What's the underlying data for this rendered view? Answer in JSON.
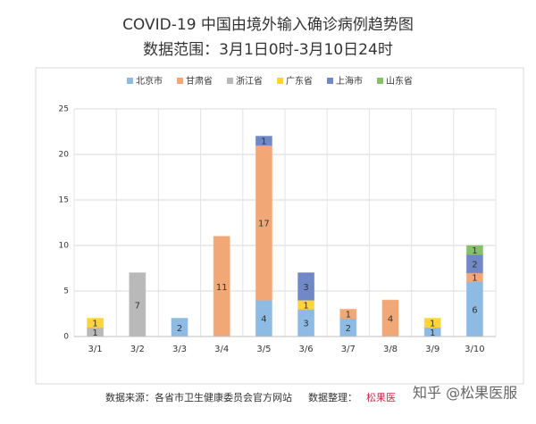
{
  "chart_data": {
    "type": "stacked-bar",
    "title": "COVID-19 中国由境外输入确诊病例趋势图",
    "subtitle": "数据范围：3月1日0时-3月10日24时",
    "categories": [
      "3/1",
      "3/2",
      "3/3",
      "3/4",
      "3/5",
      "3/6",
      "3/7",
      "3/8",
      "3/9",
      "3/10"
    ],
    "series": [
      {
        "name": "北京市",
        "color": "#8dbbe3",
        "values": [
          null,
          null,
          2,
          null,
          4,
          3,
          2,
          null,
          1,
          6
        ]
      },
      {
        "name": "甘肃省",
        "color": "#f1a876",
        "values": [
          null,
          null,
          null,
          11,
          17,
          null,
          1,
          4,
          null,
          1
        ]
      },
      {
        "name": "浙江省",
        "color": "#b9b9b9",
        "values": [
          1,
          7,
          null,
          null,
          null,
          null,
          null,
          null,
          null,
          null
        ]
      },
      {
        "name": "广东省",
        "color": "#ffd43b",
        "values": [
          1,
          null,
          null,
          null,
          null,
          1,
          null,
          null,
          1,
          null
        ]
      },
      {
        "name": "上海市",
        "color": "#7089c6",
        "values": [
          null,
          null,
          null,
          null,
          1,
          3,
          null,
          null,
          null,
          2
        ]
      },
      {
        "name": "山东省",
        "color": "#86c06a",
        "values": [
          null,
          null,
          null,
          null,
          null,
          null,
          null,
          null,
          null,
          1
        ]
      }
    ],
    "ylim": [
      0,
      25
    ],
    "yticks": [
      0,
      5,
      10,
      15,
      20,
      25
    ],
    "grid": true,
    "legend": "top"
  },
  "footer": {
    "source": "数据来源：各省市卫生健康委员会官方网站",
    "organizer": "数据整理：",
    "logo": "松果医",
    "watermark": "知乎 @松果医服"
  }
}
